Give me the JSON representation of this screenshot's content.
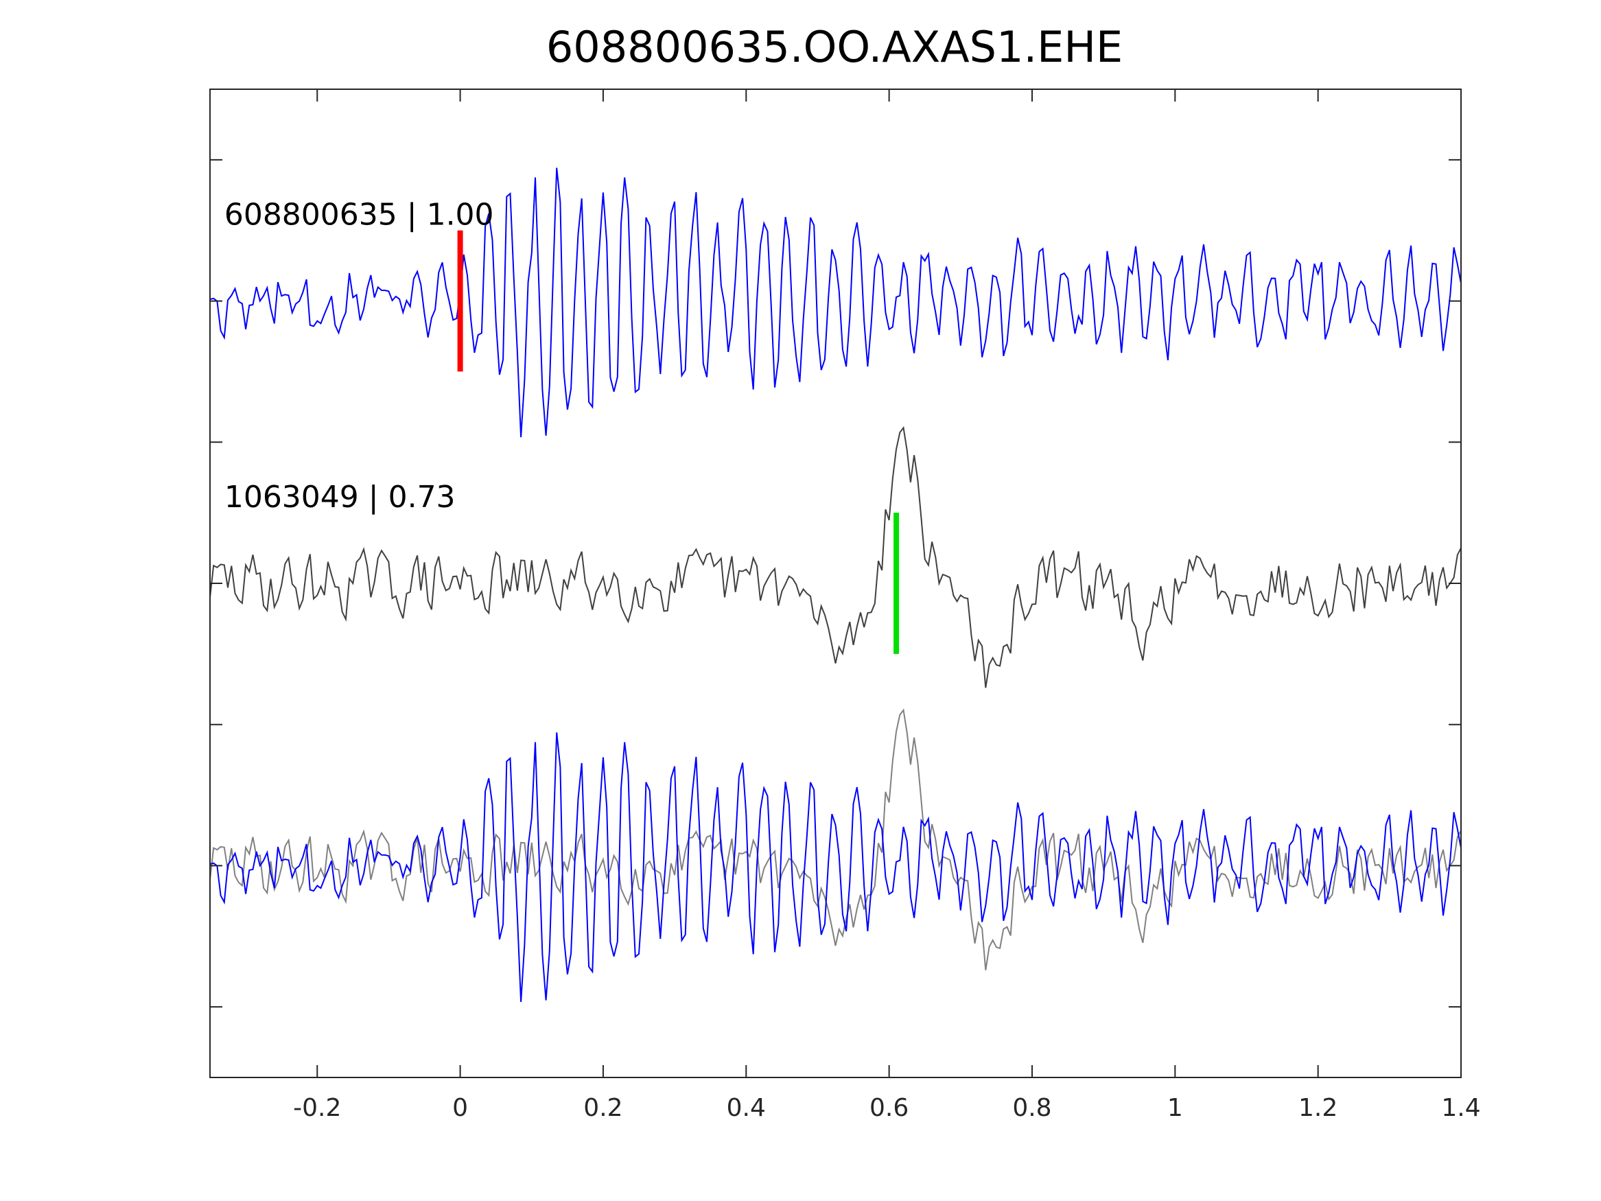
{
  "chart_data": {
    "type": "line",
    "title": "608800635.OO.AXAS1.EHE",
    "xlabel": "",
    "ylabel": "",
    "xlim": [
      -0.35,
      1.4
    ],
    "ylim": [
      -0.5,
      6.5
    ],
    "xticks": [
      -0.2,
      0,
      0.2,
      0.4,
      0.6,
      0.8,
      1,
      1.2,
      1.4
    ],
    "xtick_labels": [
      "-0.2",
      "0",
      "0.2",
      "0.4",
      "0.6",
      "0.8",
      "1",
      "1.2",
      "1.4"
    ],
    "yticks": [
      0,
      1,
      2,
      3,
      4,
      5,
      6
    ],
    "grid": false,
    "sample_interval": 0.005,
    "series": [
      {
        "name": "608800635",
        "offset": 5,
        "color": "#0000ff",
        "seed": 11,
        "noise": 0.22,
        "envelope": [
          [
            -0.35,
            0.25
          ],
          [
            0.0,
            0.3
          ],
          [
            0.06,
            0.9
          ],
          [
            0.13,
            1.1
          ],
          [
            0.3,
            0.75
          ],
          [
            0.5,
            0.6
          ],
          [
            0.6,
            0.35
          ],
          [
            1.4,
            0.3
          ]
        ],
        "freq": 31
      },
      {
        "name": "1063049",
        "offset": 3,
        "color": "#404040",
        "seed": 29,
        "noise": 0.28,
        "events": [
          [
            0.53,
            -0.45,
            0.03
          ],
          [
            0.62,
            1.05,
            0.02
          ],
          [
            0.745,
            -0.75,
            0.02
          ],
          [
            0.955,
            -0.55,
            0.015
          ]
        ]
      },
      {
        "name": "overlay-1063049",
        "offset": 1,
        "color": "#808080",
        "copy_of": 1
      },
      {
        "name": "overlay-608800635",
        "offset": 1,
        "color": "#0000ff",
        "copy_of": 0
      }
    ],
    "annotations": [
      {
        "text": "608800635 | 1.00",
        "x": -0.33,
        "y": 5.5
      },
      {
        "text": "1063049 | 0.73",
        "x": -0.33,
        "y": 3.5
      }
    ],
    "picks": [
      {
        "x": 0.0,
        "y0": 4.5,
        "y1": 5.5,
        "color": "#ff0000"
      },
      {
        "x": 0.61,
        "y0": 2.5,
        "y1": 3.5,
        "color": "#00e000"
      }
    ]
  }
}
